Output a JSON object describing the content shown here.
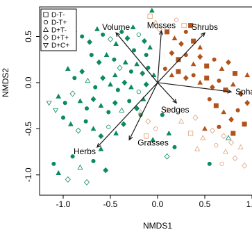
{
  "chart_data": {
    "type": "scatter",
    "xlabel": "NMDS1",
    "ylabel": "NMDS2",
    "xlim": [
      -1.25,
      1.0
    ],
    "ylim": [
      -1.22,
      0.82
    ],
    "xticks": [
      -1.0,
      -0.5,
      0.0,
      0.5,
      1.0
    ],
    "xtick_labels": [
      "-1.0",
      "-0.5",
      "0.0",
      "0.5",
      "1.0"
    ],
    "yticks": [
      -1.0,
      -0.5,
      0.0,
      0.5
    ],
    "ytick_labels": [
      "-1.0",
      "-0.5",
      "0.0",
      "0.5"
    ],
    "grid": false,
    "legend_position": "top-left",
    "legend": [
      {
        "label": "D-T-",
        "marker": "square"
      },
      {
        "label": "D-T+",
        "marker": "circle"
      },
      {
        "label": "D+T-",
        "marker": "triangle-up"
      },
      {
        "label": "D+T+",
        "marker": "diamond"
      },
      {
        "label": "D+C+",
        "marker": "triangle-down"
      }
    ],
    "colors": {
      "green": "#0b8a62",
      "brown": "#b0521a",
      "light_brown": "#e0a078"
    },
    "vectors": [
      {
        "label": "Volume",
        "x": -0.44,
        "y": 0.54
      },
      {
        "label": "Mosses",
        "x": 0.04,
        "y": 0.56
      },
      {
        "label": "Shrubs",
        "x": 0.5,
        "y": 0.54
      },
      {
        "label": "Sphagnum",
        "x": 0.78,
        "y": -0.1
      },
      {
        "label": "Sedges",
        "x": 0.2,
        "y": -0.22
      },
      {
        "label": "Grasses",
        "x": -0.3,
        "y": -0.62
      },
      {
        "label": "Herbs",
        "x": -0.64,
        "y": -0.7
      }
    ],
    "series": [
      {
        "color": "green",
        "points": [
          {
            "x": -0.88,
            "y": 0.57,
            "m": "triangle-up",
            "f": true
          },
          {
            "x": -0.8,
            "y": 0.5,
            "m": "circle",
            "f": true
          },
          {
            "x": -0.72,
            "y": 0.44,
            "m": "diamond",
            "f": true
          },
          {
            "x": -0.64,
            "y": 0.58,
            "m": "triangle-up",
            "f": true
          },
          {
            "x": -0.58,
            "y": 0.52,
            "m": "circle",
            "f": true
          },
          {
            "x": -0.5,
            "y": 0.47,
            "m": "diamond",
            "f": false
          },
          {
            "x": -0.44,
            "y": 0.42,
            "m": "triangle-up",
            "f": true
          },
          {
            "x": -0.38,
            "y": 0.55,
            "m": "circle",
            "f": true
          },
          {
            "x": -0.32,
            "y": 0.48,
            "m": "diamond",
            "f": true
          },
          {
            "x": -0.26,
            "y": 0.6,
            "m": "triangle-up",
            "f": true
          },
          {
            "x": -0.2,
            "y": 0.52,
            "m": "circle",
            "f": false
          },
          {
            "x": -0.14,
            "y": 0.45,
            "m": "diamond",
            "f": true
          },
          {
            "x": -0.08,
            "y": 0.38,
            "m": "triangle-up",
            "f": true
          },
          {
            "x": -0.12,
            "y": 0.3,
            "m": "circle",
            "f": true
          },
          {
            "x": -0.06,
            "y": 0.78,
            "m": "triangle-up",
            "f": true
          },
          {
            "x": -0.7,
            "y": 0.3,
            "m": "circle",
            "f": true
          },
          {
            "x": -0.62,
            "y": 0.22,
            "m": "diamond",
            "f": true
          },
          {
            "x": -0.54,
            "y": 0.3,
            "m": "triangle-up",
            "f": true
          },
          {
            "x": -0.46,
            "y": 0.25,
            "m": "circle",
            "f": true
          },
          {
            "x": -0.4,
            "y": 0.16,
            "m": "diamond",
            "f": false
          },
          {
            "x": -0.34,
            "y": 0.22,
            "m": "triangle-up",
            "f": true
          },
          {
            "x": -0.28,
            "y": 0.12,
            "m": "circle",
            "f": true
          },
          {
            "x": -0.22,
            "y": 0.2,
            "m": "triangle-up",
            "f": true
          },
          {
            "x": -0.16,
            "y": 0.1,
            "m": "diamond",
            "f": true
          },
          {
            "x": -0.1,
            "y": 0.16,
            "m": "circle",
            "f": true
          },
          {
            "x": -0.04,
            "y": 0.08,
            "m": "triangle-up",
            "f": true
          },
          {
            "x": -0.95,
            "y": 0.15,
            "m": "triangle-up",
            "f": true
          },
          {
            "x": -0.88,
            "y": 0.05,
            "m": "circle",
            "f": true
          },
          {
            "x": -0.8,
            "y": 0.12,
            "m": "diamond",
            "f": true
          },
          {
            "x": -0.74,
            "y": 0.02,
            "m": "triangle-up",
            "f": false
          },
          {
            "x": -0.66,
            "y": -0.05,
            "m": "circle",
            "f": true
          },
          {
            "x": -0.58,
            "y": 0.05,
            "m": "diamond",
            "f": true
          },
          {
            "x": -0.5,
            "y": -0.02,
            "m": "triangle-up",
            "f": true
          },
          {
            "x": -0.42,
            "y": -0.08,
            "m": "circle",
            "f": true
          },
          {
            "x": -0.35,
            "y": 0.0,
            "m": "diamond",
            "f": true
          },
          {
            "x": -0.28,
            "y": -0.05,
            "m": "triangle-up",
            "f": true
          },
          {
            "x": -0.2,
            "y": -0.1,
            "m": "circle",
            "f": false
          },
          {
            "x": -0.12,
            "y": -0.02,
            "m": "diamond",
            "f": true
          },
          {
            "x": -1.05,
            "y": -0.15,
            "m": "triangle-up",
            "f": true
          },
          {
            "x": -0.98,
            "y": -0.22,
            "m": "circle",
            "f": true
          },
          {
            "x": -0.9,
            "y": -0.12,
            "m": "diamond",
            "f": false
          },
          {
            "x": -0.82,
            "y": -0.2,
            "m": "triangle-up",
            "f": true
          },
          {
            "x": -0.75,
            "y": -0.28,
            "m": "circle",
            "f": true
          },
          {
            "x": -0.68,
            "y": -0.18,
            "m": "diamond",
            "f": true
          },
          {
            "x": -0.6,
            "y": -0.25,
            "m": "triangle-up",
            "f": true
          },
          {
            "x": -0.52,
            "y": -0.32,
            "m": "circle",
            "f": true
          },
          {
            "x": -0.45,
            "y": -0.22,
            "m": "diamond",
            "f": true
          },
          {
            "x": -0.38,
            "y": -0.3,
            "m": "triangle-up",
            "f": false
          },
          {
            "x": -0.3,
            "y": -0.2,
            "m": "circle",
            "f": true
          },
          {
            "x": -0.22,
            "y": -0.28,
            "m": "diamond",
            "f": true
          },
          {
            "x": -0.15,
            "y": -0.18,
            "m": "triangle-up",
            "f": true
          },
          {
            "x": -0.18,
            "y": -0.35,
            "m": "circle",
            "f": true
          },
          {
            "x": -1.15,
            "y": -0.22,
            "m": "triangle-down",
            "f": false
          },
          {
            "x": -1.08,
            "y": -0.3,
            "m": "triangle-down",
            "f": false
          },
          {
            "x": -1.0,
            "y": -0.38,
            "m": "circle",
            "f": true
          },
          {
            "x": -0.92,
            "y": -0.45,
            "m": "triangle-up",
            "f": true
          },
          {
            "x": -0.84,
            "y": -0.52,
            "m": "diamond",
            "f": false
          },
          {
            "x": -0.76,
            "y": -0.42,
            "m": "circle",
            "f": true
          },
          {
            "x": -0.68,
            "y": -0.5,
            "m": "triangle-up",
            "f": true
          },
          {
            "x": -0.6,
            "y": -0.58,
            "m": "diamond",
            "f": true
          },
          {
            "x": -0.52,
            "y": -0.48,
            "m": "circle",
            "f": false
          },
          {
            "x": -0.44,
            "y": -0.55,
            "m": "triangle-up",
            "f": true
          },
          {
            "x": -0.36,
            "y": -0.45,
            "m": "diamond",
            "f": true
          },
          {
            "x": -1.1,
            "y": -0.88,
            "m": "circle",
            "f": true
          },
          {
            "x": -1.05,
            "y": -0.98,
            "m": "triangle-up",
            "f": true
          },
          {
            "x": -0.95,
            "y": -1.05,
            "m": "diamond",
            "f": false
          },
          {
            "x": -0.9,
            "y": -0.8,
            "m": "circle",
            "f": true
          },
          {
            "x": -0.82,
            "y": -0.92,
            "m": "triangle-up",
            "f": false
          },
          {
            "x": -0.75,
            "y": -1.08,
            "m": "diamond",
            "f": false
          },
          {
            "x": -0.68,
            "y": -0.85,
            "m": "circle",
            "f": true
          },
          {
            "x": -0.6,
            "y": -0.72,
            "m": "triangle-up",
            "f": true
          },
          {
            "x": -0.55,
            "y": -0.95,
            "m": "diamond",
            "f": true
          },
          {
            "x": 0.05,
            "y": -0.35,
            "m": "circle",
            "f": true
          },
          {
            "x": 0.12,
            "y": -0.55,
            "m": "triangle-up",
            "f": true
          },
          {
            "x": 0.18,
            "y": -0.7,
            "m": "circle",
            "f": true
          },
          {
            "x": 0.1,
            "y": -0.8,
            "m": "diamond",
            "f": false
          },
          {
            "x": -0.05,
            "y": -0.62,
            "m": "triangle-up",
            "f": true
          },
          {
            "x": 0.55,
            "y": -0.88,
            "m": "circle",
            "f": true
          },
          {
            "x": 0.75,
            "y": -0.6,
            "m": "triangle-up",
            "f": false
          },
          {
            "x": -0.25,
            "y": 0.35,
            "m": "circle",
            "f": true
          },
          {
            "x": -0.45,
            "y": 0.08,
            "m": "triangle-up",
            "f": true
          }
        ]
      },
      {
        "color": "brown",
        "points": [
          {
            "x": 0.1,
            "y": 0.55,
            "m": "square",
            "f": true
          },
          {
            "x": 0.18,
            "y": 0.48,
            "m": "triangle-up",
            "f": true
          },
          {
            "x": 0.25,
            "y": 0.42,
            "m": "diamond",
            "f": true
          },
          {
            "x": 0.3,
            "y": 0.55,
            "m": "circle",
            "f": true
          },
          {
            "x": 0.38,
            "y": 0.45,
            "m": "square",
            "f": true
          },
          {
            "x": 0.45,
            "y": 0.38,
            "m": "triangle-up",
            "f": true
          },
          {
            "x": 0.15,
            "y": 0.32,
            "m": "diamond",
            "f": true
          },
          {
            "x": 0.22,
            "y": 0.25,
            "m": "square",
            "f": true
          },
          {
            "x": 0.3,
            "y": 0.3,
            "m": "circle",
            "f": true
          },
          {
            "x": 0.38,
            "y": 0.2,
            "m": "triangle-up",
            "f": true
          },
          {
            "x": 0.45,
            "y": 0.28,
            "m": "diamond",
            "f": true
          },
          {
            "x": 0.52,
            "y": 0.18,
            "m": "square",
            "f": true
          },
          {
            "x": 0.6,
            "y": 0.25,
            "m": "circle",
            "f": true
          },
          {
            "x": 0.68,
            "y": 0.15,
            "m": "triangle-up",
            "f": true
          },
          {
            "x": 0.75,
            "y": 0.22,
            "m": "diamond",
            "f": true
          },
          {
            "x": 0.82,
            "y": 0.1,
            "m": "square",
            "f": true
          },
          {
            "x": 0.08,
            "y": 0.15,
            "m": "circle",
            "f": true
          },
          {
            "x": 0.15,
            "y": 0.08,
            "m": "triangle-up",
            "f": true
          },
          {
            "x": 0.22,
            "y": 0.12,
            "m": "square",
            "f": true
          },
          {
            "x": 0.3,
            "y": 0.05,
            "m": "diamond",
            "f": true
          },
          {
            "x": 0.38,
            "y": 0.08,
            "m": "circle",
            "f": true
          },
          {
            "x": 0.45,
            "y": 0.0,
            "m": "triangle-up",
            "f": true
          },
          {
            "x": 0.52,
            "y": 0.05,
            "m": "square",
            "f": true
          },
          {
            "x": 0.58,
            "y": -0.05,
            "m": "diamond",
            "f": true
          },
          {
            "x": 0.65,
            "y": 0.02,
            "m": "circle",
            "f": true
          },
          {
            "x": 0.72,
            "y": -0.08,
            "m": "square",
            "f": true
          },
          {
            "x": 0.8,
            "y": -0.02,
            "m": "triangle-up",
            "f": true
          },
          {
            "x": 0.88,
            "y": -0.12,
            "m": "diamond",
            "f": true
          },
          {
            "x": 0.55,
            "y": -0.18,
            "m": "circle",
            "f": true
          },
          {
            "x": 0.62,
            "y": -0.25,
            "m": "square",
            "f": true
          },
          {
            "x": 0.7,
            "y": -0.32,
            "m": "triangle-up",
            "f": true
          },
          {
            "x": 0.78,
            "y": -0.4,
            "m": "diamond",
            "f": true
          },
          {
            "x": 0.85,
            "y": -0.3,
            "m": "circle",
            "f": true
          },
          {
            "x": 0.92,
            "y": -0.45,
            "m": "square",
            "f": true
          },
          {
            "x": 0.5,
            "y": -0.5,
            "m": "triangle-up",
            "f": true
          },
          {
            "x": 0.65,
            "y": -0.48,
            "m": "circle",
            "f": true
          },
          {
            "x": 0.8,
            "y": -0.55,
            "m": "square",
            "f": true
          },
          {
            "x": 0.95,
            "y": -0.22,
            "m": "diamond",
            "f": true
          },
          {
            "x": 0.95,
            "y": 0.08,
            "m": "triangle-up",
            "f": true
          },
          {
            "x": 0.35,
            "y": 0.62,
            "m": "square",
            "f": true
          }
        ]
      },
      {
        "color": "light_brown",
        "points": [
          {
            "x": -0.08,
            "y": 0.72,
            "m": "square",
            "f": false
          },
          {
            "x": -0.02,
            "y": 0.65,
            "m": "triangle-up",
            "f": false
          },
          {
            "x": 0.02,
            "y": 0.58,
            "m": "diamond",
            "f": false
          },
          {
            "x": 0.2,
            "y": 0.68,
            "m": "circle",
            "f": false
          },
          {
            "x": 0.28,
            "y": 0.62,
            "m": "square",
            "f": false
          },
          {
            "x": -0.18,
            "y": -0.32,
            "m": "triangle-up",
            "f": false
          },
          {
            "x": -0.1,
            "y": -0.42,
            "m": "diamond",
            "f": false
          },
          {
            "x": -0.02,
            "y": -0.5,
            "m": "circle",
            "f": false
          },
          {
            "x": -0.12,
            "y": -0.58,
            "m": "square",
            "f": false
          },
          {
            "x": 0.4,
            "y": -0.38,
            "m": "diamond",
            "f": false
          },
          {
            "x": 0.48,
            "y": -0.6,
            "m": "triangle-up",
            "f": false
          },
          {
            "x": 0.58,
            "y": -0.52,
            "m": "diamond",
            "f": false
          },
          {
            "x": 0.62,
            "y": -0.68,
            "m": "circle",
            "f": false
          },
          {
            "x": 0.7,
            "y": -0.58,
            "m": "diamond",
            "f": false
          },
          {
            "x": 0.72,
            "y": -0.75,
            "m": "triangle-up",
            "f": false
          },
          {
            "x": 0.78,
            "y": -0.65,
            "m": "diamond",
            "f": false
          },
          {
            "x": 0.82,
            "y": -0.82,
            "m": "diamond",
            "f": false
          },
          {
            "x": 0.88,
            "y": -0.7,
            "m": "triangle-up",
            "f": false
          },
          {
            "x": 0.92,
            "y": -0.9,
            "m": "diamond",
            "f": false
          },
          {
            "x": 0.68,
            "y": -0.88,
            "m": "circle",
            "f": false
          },
          {
            "x": 0.42,
            "y": -0.72,
            "m": "triangle-up",
            "f": false
          },
          {
            "x": 0.35,
            "y": -0.55,
            "m": "square",
            "f": false
          },
          {
            "x": 0.1,
            "y": -0.3,
            "m": "diamond",
            "f": false
          },
          {
            "x": 0.25,
            "y": -0.42,
            "m": "triangle-up",
            "f": false
          }
        ]
      }
    ]
  }
}
